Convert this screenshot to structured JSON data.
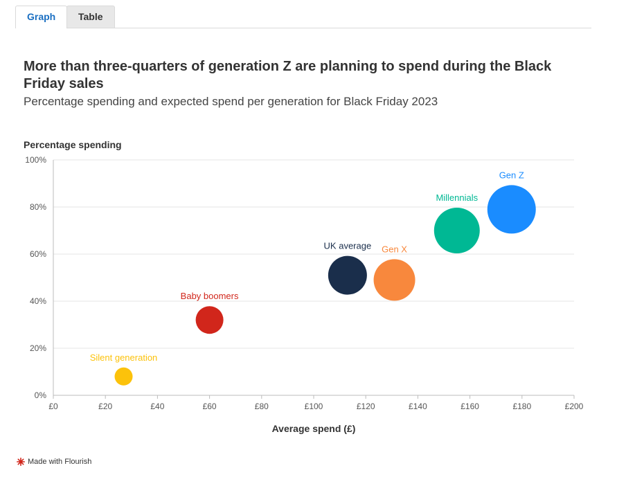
{
  "tabs": {
    "graph": "Graph",
    "table": "Table"
  },
  "chart_data": {
    "type": "scatter",
    "title": "More than three-quarters of generation Z are planning to spend during the Black Friday sales",
    "subtitle": "Percentage spending and expected spend per generation for Black Friday 2023",
    "xlabel": "Average spend (£)",
    "ylabel": "Percentage spending",
    "xlim": [
      0,
      200
    ],
    "ylim": [
      0,
      100
    ],
    "x_ticks": [
      "£0",
      "£20",
      "£40",
      "£60",
      "£80",
      "£100",
      "£120",
      "£140",
      "£160",
      "£180",
      "£200"
    ],
    "y_ticks": [
      "0%",
      "20%",
      "40%",
      "60%",
      "80%",
      "100%"
    ],
    "grid": true,
    "points": [
      {
        "label": "Silent generation",
        "x": 27,
        "y": 8,
        "r": 13,
        "color": "#fcc20b"
      },
      {
        "label": "Baby boomers",
        "x": 60,
        "y": 32,
        "r": 20,
        "color": "#d1261b"
      },
      {
        "label": "UK average",
        "x": 113,
        "y": 51,
        "r": 28,
        "color": "#1a2e4b"
      },
      {
        "label": "Gen X",
        "x": 131,
        "y": 49,
        "r": 30,
        "color": "#f8883d"
      },
      {
        "label": "Millennials",
        "x": 155,
        "y": 70,
        "r": 33,
        "color": "#00b894"
      },
      {
        "label": "Gen Z",
        "x": 176,
        "y": 79,
        "r": 35,
        "color": "#1a8cff"
      }
    ]
  },
  "footer": {
    "text": "Made with Flourish"
  }
}
